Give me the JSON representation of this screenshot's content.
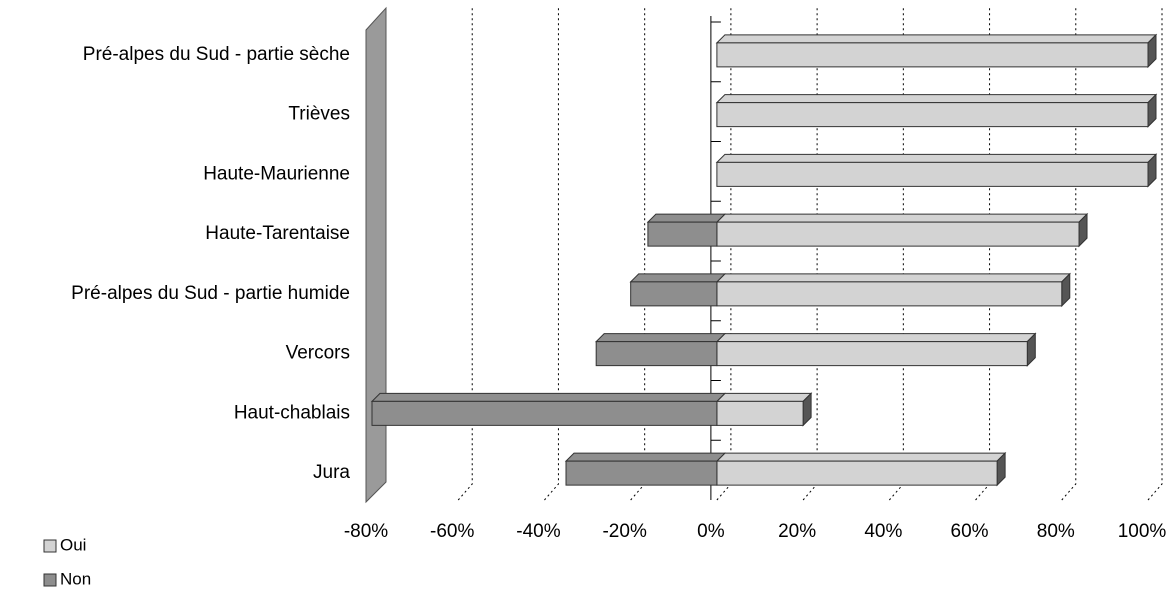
{
  "chart_data": {
    "type": "bar",
    "orientation": "horizontal",
    "stacked": true,
    "categories": [
      "Pré-alpes du Sud - partie sèche",
      "Trièves",
      "Haute-Maurienne",
      "Haute-Tarentaise",
      "Pré-alpes du Sud - partie humide",
      "Vercors",
      "Haut-chablais",
      "Jura"
    ],
    "series": [
      {
        "name": "Oui",
        "color": "#d3d3d3",
        "values": [
          100,
          100,
          100,
          84,
          80,
          72,
          20,
          65
        ]
      },
      {
        "name": "Non",
        "color": "#8e8e8e",
        "values": [
          0,
          0,
          0,
          -16,
          -20,
          -28,
          -80,
          -35
        ]
      }
    ],
    "xlim": [
      -80,
      100
    ],
    "xticks": [
      {
        "value": -80,
        "label": "-80%"
      },
      {
        "value": -60,
        "label": "-60%"
      },
      {
        "value": -40,
        "label": "-40%"
      },
      {
        "value": -20,
        "label": "-20%"
      },
      {
        "value": 0,
        "label": "0%"
      },
      {
        "value": 20,
        "label": "20%"
      },
      {
        "value": 40,
        "label": "40%"
      },
      {
        "value": 60,
        "label": "60%"
      },
      {
        "value": 80,
        "label": "80%"
      },
      {
        "value": 100,
        "label": "100%"
      }
    ],
    "grid": true,
    "legend": "bottom-left"
  }
}
